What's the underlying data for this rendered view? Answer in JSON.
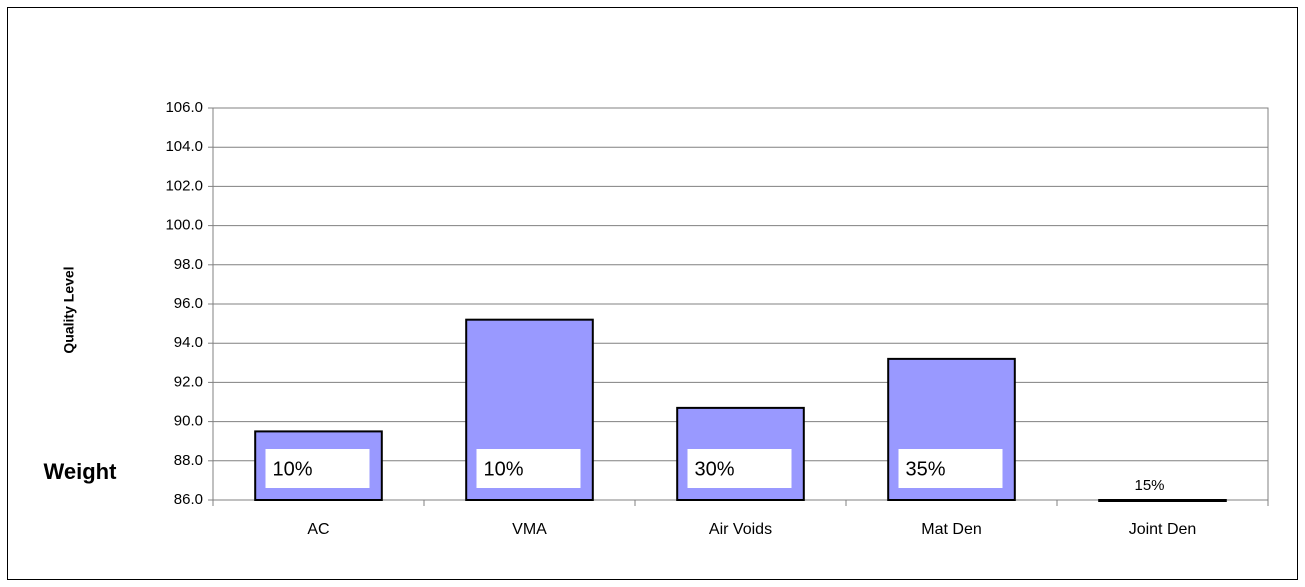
{
  "chart_data": {
    "type": "bar",
    "y_axis_label": "Quality Level",
    "weight_title": "Weight",
    "categories": [
      "AC",
      "VMA",
      "Air Voids",
      "Mat Den",
      "Joint Den"
    ],
    "values": [
      89.5,
      95.2,
      90.7,
      93.2,
      86.0
    ],
    "weight_labels": [
      "10%",
      "10%",
      "30%",
      "35%",
      "15%"
    ],
    "color": "#9999ff",
    "ylim": [
      86,
      106
    ],
    "yticks": [
      {
        "value": 86,
        "label": "86.0"
      },
      {
        "value": 88,
        "label": "88.0"
      },
      {
        "value": 90,
        "label": "90.0"
      },
      {
        "value": 92,
        "label": "92.0"
      },
      {
        "value": 94,
        "label": "94.0"
      },
      {
        "value": 96,
        "label": "96.0"
      },
      {
        "value": 98,
        "label": "98.0"
      },
      {
        "value": 100,
        "label": "100.0"
      },
      {
        "value": 102,
        "label": "102.0"
      },
      {
        "value": 104,
        "label": "104.0"
      },
      {
        "value": 106,
        "label": "106.0"
      }
    ],
    "grid": true
  }
}
